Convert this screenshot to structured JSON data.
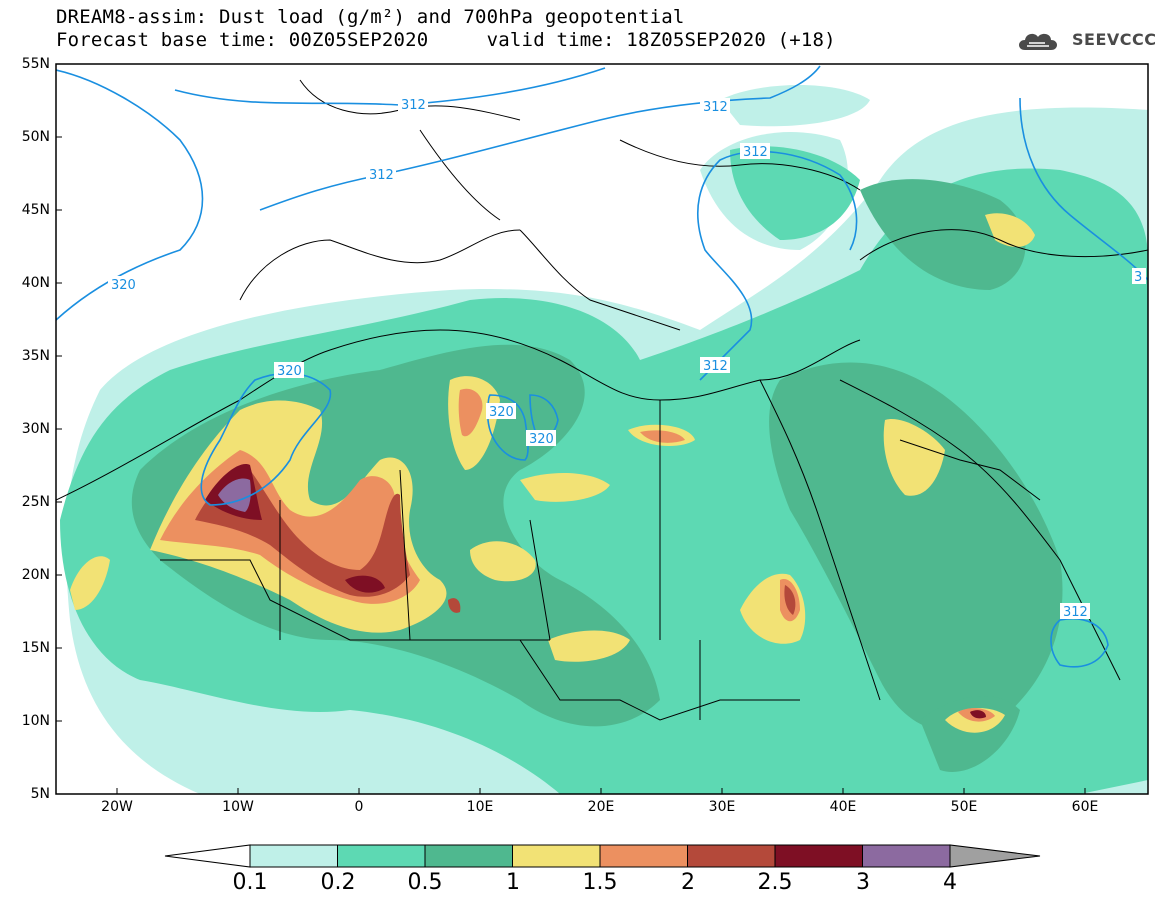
{
  "title": {
    "line1": "DREAM8-assim: Dust load (g/m²) and 700hPa geopotential",
    "line2": "Forecast base time: 00Z05SEP2020     valid time: 18Z05SEP2020 (+18)"
  },
  "logo": {
    "text": "SEEVCCC",
    "icon": "cloud-icon"
  },
  "axes": {
    "lat_labels": [
      "55N",
      "50N",
      "45N",
      "40N",
      "35N",
      "30N",
      "25N",
      "20N",
      "15N",
      "10N",
      "5N"
    ],
    "lon_labels": [
      "20W",
      "10W",
      "0",
      "10E",
      "20E",
      "30E",
      "40E",
      "50E",
      "60E"
    ]
  },
  "contours": [
    "312",
    "312",
    "312",
    "312",
    "320",
    "320",
    "320",
    "320",
    "312",
    "312",
    "3"
  ],
  "colorbar": {
    "labels": [
      "0.1",
      "0.2",
      "0.5",
      "1",
      "1.5",
      "2",
      "2.5",
      "3",
      "4"
    ],
    "colors": [
      "#ffffff",
      "#bff0e8",
      "#5dd9b3",
      "#4fb88f",
      "#f2e275",
      "#ec9060",
      "#b4493a",
      "#7e0f24",
      "#8c6aa0",
      "#a0a0a0"
    ]
  },
  "colors": {
    "level1": "#bff0e8",
    "level2": "#5dd9b3",
    "level3": "#4fb88f",
    "level4": "#f2e275",
    "level5": "#ec9060",
    "level6": "#b4493a",
    "level7": "#7e0f24",
    "level8": "#8c6aa0",
    "contour": "#1a8fe0"
  }
}
